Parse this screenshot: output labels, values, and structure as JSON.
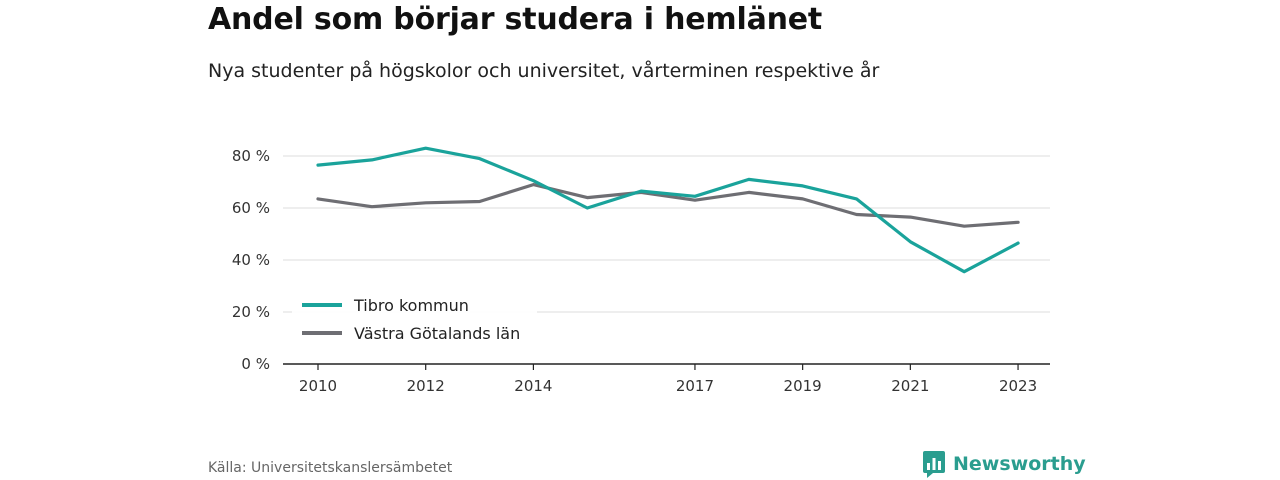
{
  "title": "Andel som börjar studera i hemlänet",
  "subtitle": "Nya studenter på högskolor och universitet, vårterminen respektive år",
  "source": "Källa: Universitetskanslersämbetet",
  "brand": {
    "name": "Newsworthy",
    "icon": "chart-speech-bubble-icon",
    "color": "#2a9d8f"
  },
  "chart_data": {
    "type": "line",
    "x": [
      2010,
      2011,
      2012,
      2013,
      2014,
      2015,
      2016,
      2017,
      2018,
      2019,
      2020,
      2021,
      2022,
      2023
    ],
    "x_ticks": [
      2010,
      2012,
      2014,
      2017,
      2019,
      2021,
      2023
    ],
    "y_ticks": [
      "0 %",
      "20 %",
      "40 %",
      "60 %",
      "80 %"
    ],
    "ylim": [
      0,
      80
    ],
    "grid": true,
    "legend_position": "bottom-left",
    "series": [
      {
        "name": "Tibro kommun",
        "color": "#1aa39b",
        "values": [
          76.5,
          78.5,
          83.0,
          79.0,
          70.5,
          60.0,
          66.5,
          64.5,
          71.0,
          68.5,
          63.5,
          47.0,
          35.5,
          46.5
        ]
      },
      {
        "name": "Västra Götalands län",
        "color": "#6e6e73",
        "values": [
          63.5,
          60.5,
          62.0,
          62.5,
          69.0,
          64.0,
          66.0,
          63.0,
          66.0,
          63.5,
          57.5,
          56.5,
          53.0,
          54.5
        ]
      }
    ]
  }
}
